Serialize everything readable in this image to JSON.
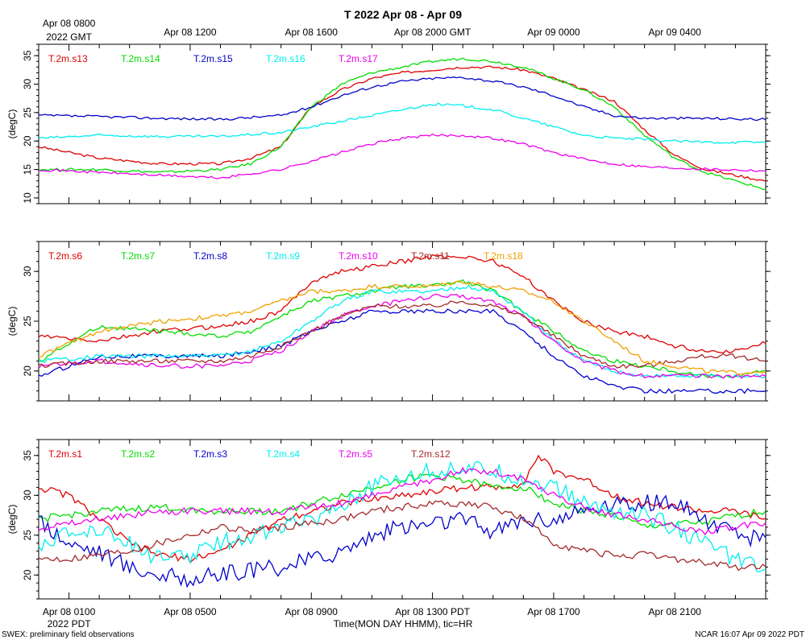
{
  "title": "T 2022 Apr 08 - Apr 09",
  "gmt_ticks": [
    "Apr 08 0800",
    "Apr 08 1200",
    "Apr 08 1600",
    "Apr 08 2000 GMT",
    "Apr 09 0000",
    "Apr 09 0400"
  ],
  "gmt_sublabel": "2022 GMT",
  "pdt_ticks": [
    "Apr 08 0100",
    "Apr 08 0500",
    "Apr 08 0900",
    "Apr 08 1300 PDT",
    "Apr 08 1700",
    "Apr 08 2100"
  ],
  "pdt_sublabel": "2022 PDT",
  "xlabel": "Time(MON DAY HHMM), tic=HR",
  "footer_left": "SWEX: preliminary field observations",
  "footer_right": "NCAR 16:07 Apr 09 2022 PDT",
  "colors": {
    "red": "#e00000",
    "green": "#00dd00",
    "blue": "#0000cc",
    "cyan": "#00eeee",
    "magenta": "#ee00ee",
    "brown": "#a52a2a",
    "orange": "#f0a000"
  },
  "chart_data": [
    {
      "type": "line",
      "ylabel": "(degC)",
      "ylim": [
        9,
        37
      ],
      "yticks": [
        10,
        15,
        20,
        25,
        30,
        35
      ],
      "x_unit": "hours since Apr 08 0000 PDT",
      "xlim": [
        0,
        24
      ],
      "series": [
        {
          "name": "T.2m.s13",
          "color": "red",
          "x": [
            0,
            2,
            4,
            6,
            7,
            8,
            9,
            10,
            11,
            12,
            13,
            14,
            15,
            16,
            17,
            18,
            19,
            20,
            21,
            22,
            23,
            24
          ],
          "y": [
            19,
            17,
            16,
            16,
            17,
            19,
            26,
            29,
            31,
            32,
            32.5,
            33,
            33,
            32.5,
            31,
            29,
            27,
            22,
            17.5,
            15,
            14,
            13
          ]
        },
        {
          "name": "T.2m.s14",
          "color": "green",
          "x": [
            0,
            2,
            4,
            6,
            7,
            8,
            9,
            10,
            11,
            12,
            13,
            14,
            15,
            16,
            17,
            18,
            19,
            20,
            21,
            22,
            23,
            24
          ],
          "y": [
            15,
            15,
            14.5,
            15,
            16,
            19,
            26,
            30,
            32,
            33,
            34,
            34.5,
            34,
            33,
            31,
            29,
            26,
            21,
            17,
            14.5,
            13,
            11.5
          ]
        },
        {
          "name": "T.2m.s15",
          "color": "blue",
          "x": [
            0,
            2,
            4,
            6,
            8,
            9,
            10,
            11,
            12,
            13,
            14,
            15,
            16,
            17,
            18,
            19,
            20,
            21,
            22,
            24
          ],
          "y": [
            24.5,
            24.3,
            24,
            23.8,
            24.5,
            26,
            28,
            29.5,
            30.5,
            31,
            31.2,
            30.5,
            29.5,
            28,
            26,
            24.5,
            24,
            24,
            24,
            23.8
          ]
        },
        {
          "name": "T.2m.s16",
          "color": "cyan",
          "x": [
            0,
            2,
            4,
            6,
            8,
            9,
            10,
            11,
            12,
            13,
            14,
            15,
            16,
            17,
            18,
            19,
            20,
            21,
            22,
            24
          ],
          "y": [
            20.5,
            21,
            20.8,
            20.8,
            21.5,
            22.5,
            23.5,
            24.5,
            25.5,
            26.5,
            26.2,
            25.5,
            24,
            22.5,
            21,
            20.5,
            20.3,
            20,
            19.8,
            19.8
          ]
        },
        {
          "name": "T.2m.s17",
          "color": "magenta",
          "x": [
            0,
            2,
            4,
            6,
            8,
            9,
            10,
            11,
            12,
            13,
            14,
            15,
            16,
            17,
            18,
            19,
            20,
            21,
            22,
            24
          ],
          "y": [
            15,
            14.5,
            14,
            13.5,
            15,
            16.5,
            18,
            19.5,
            20.5,
            21,
            21,
            20.5,
            19.5,
            18,
            16.8,
            16,
            15.5,
            15.3,
            15.1,
            14.8
          ]
        }
      ]
    },
    {
      "type": "line",
      "ylabel": "(degC)",
      "ylim": [
        17,
        33
      ],
      "yticks": [
        20,
        25,
        30
      ],
      "x_unit": "hours since Apr 08 0000 PDT",
      "xlim": [
        0,
        24
      ],
      "series": [
        {
          "name": "T.2m.s6",
          "color": "red",
          "x": [
            0,
            2,
            4,
            6,
            7,
            8,
            9,
            10,
            11,
            12,
            13,
            14,
            15,
            16,
            17,
            18,
            19,
            20,
            21,
            22,
            23,
            24
          ],
          "y": [
            23.5,
            23,
            24,
            24.5,
            25,
            26,
            29,
            30,
            30.5,
            31,
            31.5,
            31.5,
            31,
            29.5,
            27,
            25,
            24,
            23.5,
            22.5,
            22,
            22,
            22.8
          ]
        },
        {
          "name": "T.2m.s7",
          "color": "green",
          "x": [
            0,
            2,
            4,
            6,
            7,
            8,
            9,
            10,
            11,
            12,
            13,
            14,
            15,
            16,
            17,
            18,
            19,
            20,
            21,
            22,
            23,
            24
          ],
          "y": [
            21,
            24.5,
            24,
            23.5,
            24,
            25.5,
            27,
            27.5,
            28,
            28.5,
            28.5,
            29,
            28,
            26,
            24,
            22,
            21,
            20.5,
            20,
            19.5,
            19.5,
            20
          ]
        },
        {
          "name": "T.2m.s8",
          "color": "blue",
          "x": [
            0,
            2,
            4,
            6,
            7,
            8,
            9,
            10,
            11,
            12,
            13,
            14,
            15,
            16,
            17,
            18,
            19,
            20,
            21,
            22,
            23,
            24
          ],
          "y": [
            19.5,
            21.5,
            21.5,
            21.5,
            22,
            22.5,
            24,
            25,
            26,
            26,
            26,
            26,
            26,
            24,
            21.5,
            19.5,
            18.5,
            18,
            18,
            18,
            18,
            18
          ]
        },
        {
          "name": "T.2m.s9",
          "color": "cyan",
          "x": [
            0,
            2,
            4,
            6,
            7,
            8,
            9,
            10,
            11,
            12,
            13,
            14,
            15,
            16,
            17,
            18,
            19,
            20,
            21,
            22,
            23,
            24
          ],
          "y": [
            21,
            21.5,
            21.5,
            21.5,
            22,
            23,
            25,
            27,
            28,
            28,
            28,
            28.5,
            28,
            26,
            23,
            21,
            20,
            19.5,
            19.5,
            19.5,
            19.5,
            19.5
          ]
        },
        {
          "name": "T.2m.s10",
          "color": "magenta",
          "x": [
            0,
            2,
            4,
            6,
            7,
            8,
            9,
            10,
            11,
            12,
            13,
            14,
            15,
            16,
            17,
            18,
            19,
            20,
            21,
            22,
            23,
            24
          ],
          "y": [
            20.5,
            21,
            20.5,
            20.5,
            21,
            22,
            24,
            25.5,
            26.5,
            27,
            27.5,
            27.5,
            27,
            25.5,
            23,
            21,
            20,
            19.5,
            19.5,
            19.5,
            19.5,
            19.5
          ]
        },
        {
          "name": "T.2m.s11",
          "color": "brown",
          "x": [
            0,
            2,
            4,
            6,
            7,
            8,
            9,
            10,
            11,
            12,
            13,
            14,
            15,
            16,
            17,
            18,
            19,
            20,
            21,
            22,
            23,
            24
          ],
          "y": [
            20.5,
            21,
            21,
            21,
            21.5,
            22.5,
            24,
            25.5,
            26.5,
            26.5,
            26.5,
            27,
            26.5,
            25.5,
            23.5,
            21.5,
            20.5,
            20.5,
            21,
            21.5,
            21.5,
            21
          ]
        },
        {
          "name": "T.2m.s18",
          "color": "orange",
          "x": [
            0,
            2,
            4,
            6,
            7,
            8,
            9,
            10,
            11,
            12,
            13,
            14,
            15,
            16,
            17,
            18,
            19,
            20,
            21,
            22,
            23,
            24
          ],
          "y": [
            21.5,
            24,
            25,
            25.5,
            26,
            27,
            28,
            28,
            28.5,
            28.5,
            28.5,
            29,
            28.5,
            28,
            27,
            25,
            23,
            21,
            20.5,
            20,
            19.8,
            20
          ]
        }
      ]
    },
    {
      "type": "line",
      "ylabel": "(degC)",
      "ylim": [
        17,
        37
      ],
      "yticks": [
        20,
        25,
        30,
        35
      ],
      "x_unit": "hours since Apr 08 0000 PDT",
      "xlim": [
        0,
        24
      ],
      "series": [
        {
          "name": "T.2m.s1",
          "color": "red",
          "x": [
            0,
            1,
            2,
            3,
            4,
            5,
            6,
            7,
            8,
            9,
            10,
            11,
            12,
            13,
            14,
            15,
            16,
            16.5,
            17,
            18,
            19,
            20,
            21,
            22,
            23,
            24
          ],
          "y": [
            31,
            30,
            27,
            24,
            22.5,
            22,
            23,
            25,
            27,
            28,
            29,
            29.5,
            30,
            30.5,
            31,
            31,
            31.5,
            35,
            33,
            32,
            30,
            29,
            28.5,
            28,
            28,
            27
          ]
        },
        {
          "name": "T.2m.s2",
          "color": "green",
          "x": [
            0,
            2,
            4,
            6,
            8,
            9,
            10,
            11,
            12,
            13,
            14,
            15,
            16,
            17,
            18,
            19,
            20,
            21,
            22,
            23,
            24
          ],
          "y": [
            27,
            28,
            28.5,
            28,
            28,
            29,
            30,
            31,
            32,
            32.5,
            32,
            31,
            31,
            29,
            28,
            27.5,
            26,
            26.5,
            26.5,
            27.5,
            28
          ]
        },
        {
          "name": "T.2m.s3",
          "color": "blue",
          "x": [
            0,
            1,
            2,
            3,
            4,
            5,
            6,
            7,
            8,
            9,
            10,
            11,
            12,
            13,
            14,
            15,
            16,
            17,
            18,
            19,
            20,
            21,
            22,
            23,
            24
          ],
          "y": [
            27,
            24,
            23,
            21,
            20,
            19.5,
            20,
            20.5,
            21,
            22,
            23,
            25,
            26,
            26.5,
            27,
            25.5,
            27,
            27,
            28,
            29,
            29,
            29,
            27,
            25,
            24.5
          ]
        },
        {
          "name": "T.2m.s4",
          "color": "cyan",
          "x": [
            0,
            1,
            2,
            3,
            4,
            5,
            6,
            7,
            8,
            9,
            10,
            11,
            12,
            13,
            14,
            15,
            16,
            17,
            18,
            19,
            20,
            21,
            22,
            23,
            24
          ],
          "y": [
            24,
            25,
            26,
            24,
            22,
            22.5,
            24,
            25,
            26,
            27,
            29,
            31,
            32.5,
            33,
            33.5,
            33,
            32,
            31,
            29,
            28,
            27.5,
            26,
            24,
            22,
            20.5
          ]
        },
        {
          "name": "T.2m.s5",
          "color": "magenta",
          "x": [
            0,
            2,
            4,
            6,
            8,
            9,
            10,
            11,
            12,
            13,
            14,
            15,
            16,
            17,
            18,
            19,
            20,
            21,
            22,
            23,
            24
          ],
          "y": [
            26,
            27,
            28,
            28,
            28,
            28.5,
            29,
            30,
            31,
            32,
            33,
            33,
            32,
            30,
            28.5,
            27.5,
            27,
            26,
            25.5,
            26,
            26.5
          ]
        },
        {
          "name": "T.2m.s12",
          "color": "brown",
          "x": [
            0,
            1,
            2,
            3,
            4,
            5,
            6,
            7,
            8,
            9,
            10,
            11,
            12,
            13,
            14,
            15,
            16,
            17,
            18,
            19,
            20,
            21,
            22,
            23,
            24
          ],
          "y": [
            22,
            22,
            22.5,
            23,
            24,
            25,
            26,
            25.5,
            26,
            26.5,
            27,
            28,
            28.5,
            29,
            29,
            28.5,
            27,
            24,
            23,
            22.5,
            22.5,
            22,
            21.5,
            21,
            21
          ]
        }
      ]
    }
  ]
}
